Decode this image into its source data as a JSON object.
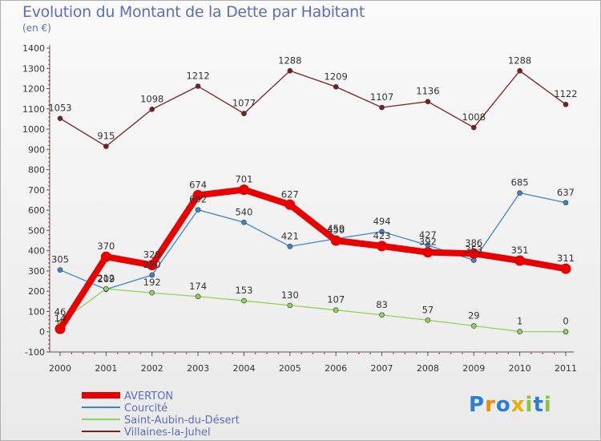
{
  "chart_data": {
    "type": "line",
    "title": "Evolution du Montant de la Dette par Habitant",
    "subtitle": "(en €)",
    "x": [
      "2000",
      "2001",
      "2002",
      "2003",
      "2004",
      "2005",
      "2006",
      "2007",
      "2008",
      "2009",
      "2010",
      "2011"
    ],
    "ylim": [
      -100,
      1400
    ],
    "yticks": [
      -100,
      0,
      100,
      200,
      300,
      400,
      500,
      600,
      700,
      800,
      900,
      1000,
      1100,
      1200,
      1300,
      1400
    ],
    "grid": false,
    "legend_position": "bottom-left",
    "series": [
      {
        "name": "AVERTON",
        "color": "#e80000",
        "values": [
          14,
          370,
          329,
          674,
          701,
          627,
          450,
          423,
          392,
          386,
          351,
          311
        ]
      },
      {
        "name": "Courcité",
        "color": "#3d85c6",
        "values": [
          305,
          209,
          280,
          602,
          540,
          421,
          459,
          494,
          427,
          353,
          685,
          637
        ]
      },
      {
        "name": "Saint-Aubin-du-Désert",
        "color": "#8ed45a",
        "values": [
          46,
          212,
          192,
          174,
          153,
          130,
          107,
          83,
          57,
          29,
          1,
          0
        ]
      },
      {
        "name": "Villaines-la-Juhel",
        "color": "#7a1f1f",
        "values": [
          1053,
          915,
          1098,
          1212,
          1077,
          1288,
          1209,
          1107,
          1136,
          1008,
          1288,
          1122
        ]
      }
    ]
  },
  "logo": {
    "text": "Proxiti",
    "letters": [
      "P",
      "r",
      "o",
      "x",
      "i",
      "t",
      "i"
    ],
    "colors": [
      "#2a7fd4",
      "#f08a00",
      "#2a7fd4",
      "#e8b000",
      "#8ac43f",
      "#2a7fd4",
      "#8ac43f"
    ]
  }
}
